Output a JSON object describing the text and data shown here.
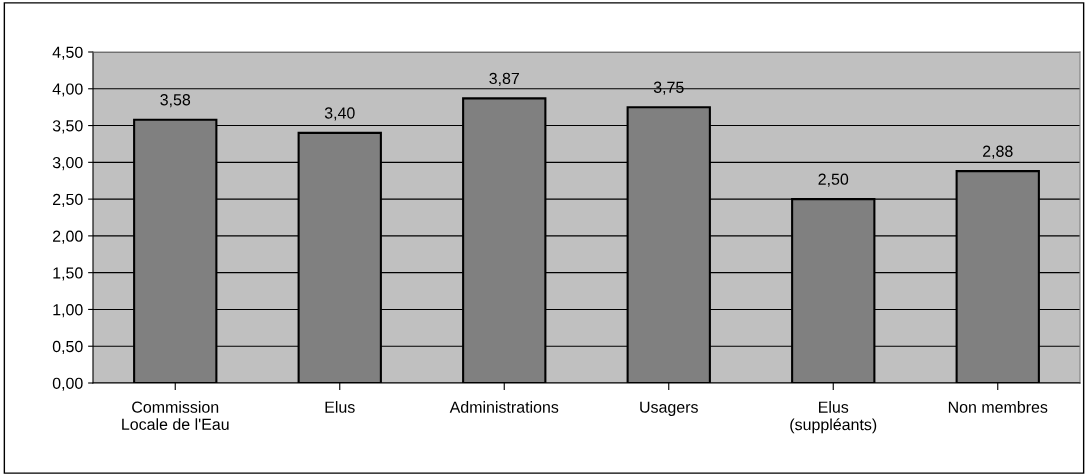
{
  "chart_data": {
    "type": "bar",
    "categories": [
      "Commission\nLocale de l'Eau",
      "Elus",
      "Administrations",
      "Usagers",
      "Elus\n(suppléants)",
      "Non membres"
    ],
    "values": [
      3.58,
      3.4,
      3.87,
      3.75,
      2.5,
      2.88
    ],
    "value_labels": [
      "3,58",
      "3,40",
      "3,87",
      "3,75",
      "2,50",
      "2,88"
    ],
    "color": "#808080",
    "ylim": [
      0,
      4.5
    ],
    "yticks": [
      {
        "value": 0,
        "label": "0,00"
      },
      {
        "value": 0.5,
        "label": "0,50"
      },
      {
        "value": 1,
        "label": "1,00"
      },
      {
        "value": 1.5,
        "label": "1,50"
      },
      {
        "value": 2,
        "label": "2,00"
      },
      {
        "value": 2.5,
        "label": "2,50"
      },
      {
        "value": 3,
        "label": "3,00"
      },
      {
        "value": 3.5,
        "label": "3,50"
      },
      {
        "value": 4,
        "label": "4,00"
      },
      {
        "value": 4.5,
        "label": "4,50"
      }
    ],
    "grid": "y",
    "legend": false
  }
}
